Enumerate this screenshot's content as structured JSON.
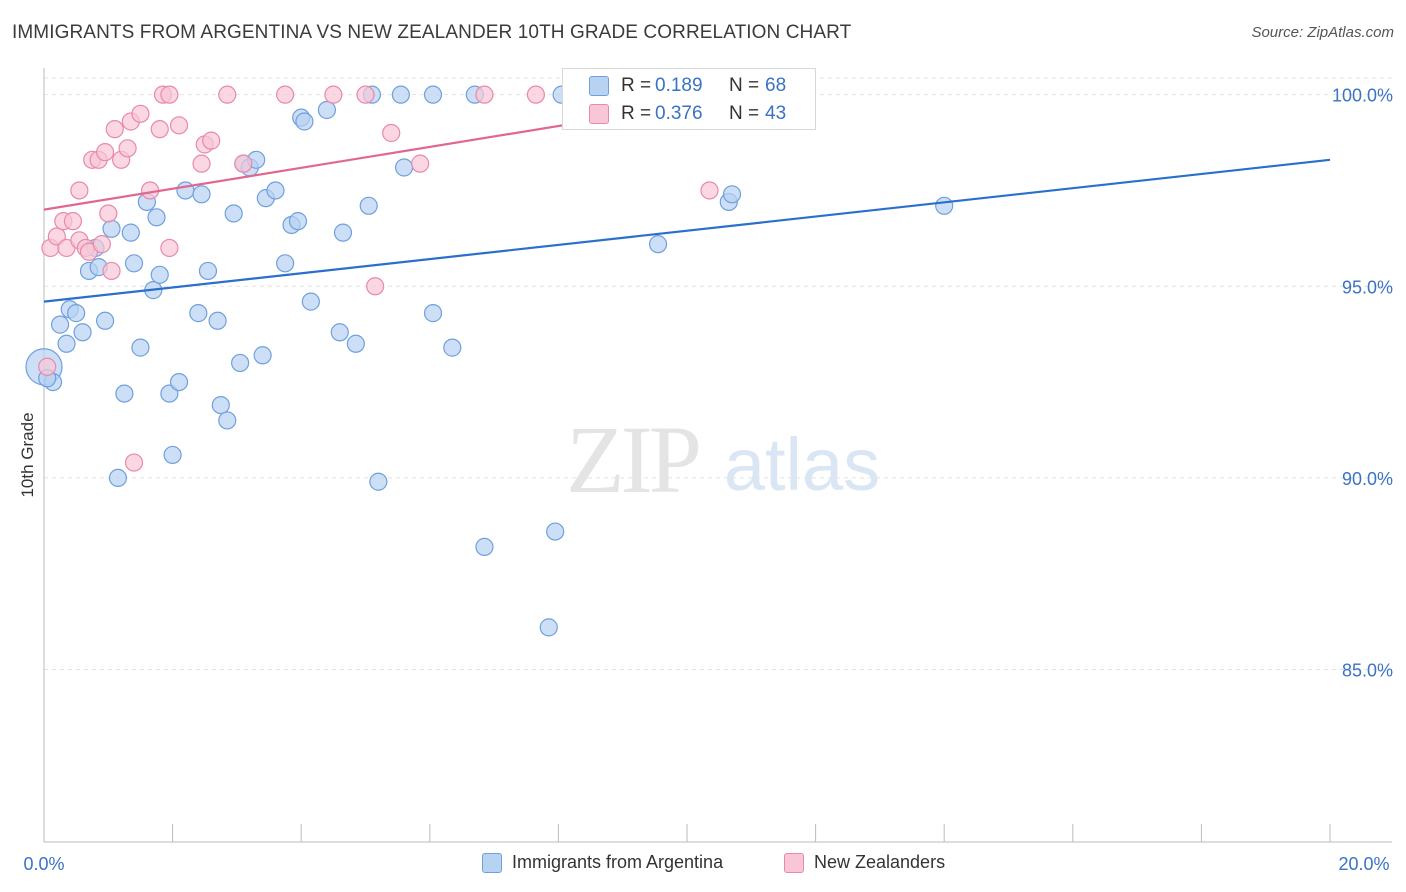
{
  "title": "IMMIGRANTS FROM ARGENTINA VS NEW ZEALANDER 10TH GRADE CORRELATION CHART",
  "source": "Source: ZipAtlas.com",
  "watermark": {
    "zip": "ZIP",
    "atlas": "atlas"
  },
  "colors": {
    "blue_fill": "#b8d2f2",
    "blue_stroke": "#6fa0dc",
    "blue_line": "#2a6fcc",
    "pink_fill": "#f8c6d6",
    "pink_stroke": "#e88aa8",
    "pink_line": "#e06890",
    "tick_label": "#3a72c4",
    "grid": "#e2e2e2"
  },
  "stats_box": {
    "rows": [
      {
        "r_label": "R =",
        "r_value": "0.189",
        "n_label": "N =",
        "n_value": "68",
        "color": "#b8d2f2",
        "stroke": "#6fa0dc"
      },
      {
        "r_label": "R =",
        "r_value": "0.376",
        "n_label": "N =",
        "n_value": "43",
        "color": "#f8c6d6",
        "stroke": "#e88aa8"
      }
    ]
  },
  "legend": {
    "items": [
      {
        "label": "Immigrants from Argentina"
      },
      {
        "label": "New Zealanders"
      }
    ]
  },
  "chart_data": {
    "type": "scatter",
    "title": "IMMIGRANTS FROM ARGENTINA VS NEW ZEALANDER 10TH GRADE CORRELATION CHART",
    "xlabel": "",
    "ylabel": "10th Grade",
    "xlim": [
      0,
      20
    ],
    "ylim": [
      80.5,
      100.8
    ],
    "x_tick_labels": [
      "0.0%",
      "20.0%"
    ],
    "y_ticks": [
      85,
      90,
      95,
      100
    ],
    "y_tick_labels": [
      "85.0%",
      "90.0%",
      "95.0%",
      "100.0%"
    ],
    "grid": "horizontal dashed",
    "legend_position": "bottom-center",
    "series": [
      {
        "name": "Immigrants from Argentina",
        "trend": {
          "x": [
            0,
            20
          ],
          "y": [
            94.6,
            98.3
          ]
        },
        "points": [
          [
            0.0,
            92.9
          ],
          [
            0.14,
            92.5
          ],
          [
            0.25,
            94.0
          ],
          [
            0.35,
            93.5
          ],
          [
            0.4,
            94.4
          ],
          [
            0.5,
            94.3
          ],
          [
            0.6,
            93.8
          ],
          [
            0.7,
            95.4
          ],
          [
            0.8,
            96.0
          ],
          [
            0.85,
            95.5
          ],
          [
            0.95,
            94.1
          ],
          [
            1.05,
            96.5
          ],
          [
            1.15,
            90.0
          ],
          [
            1.25,
            92.2
          ],
          [
            1.35,
            96.4
          ],
          [
            1.4,
            95.6
          ],
          [
            1.5,
            93.4
          ],
          [
            1.6,
            97.2
          ],
          [
            1.7,
            94.9
          ],
          [
            1.75,
            96.8
          ],
          [
            1.8,
            95.3
          ],
          [
            1.95,
            92.2
          ],
          [
            2.0,
            90.6
          ],
          [
            2.1,
            92.5
          ],
          [
            2.2,
            97.5
          ],
          [
            2.4,
            94.3
          ],
          [
            2.45,
            97.4
          ],
          [
            2.55,
            95.4
          ],
          [
            2.7,
            94.1
          ],
          [
            2.75,
            91.9
          ],
          [
            2.85,
            91.5
          ],
          [
            2.95,
            96.9
          ],
          [
            3.05,
            93.0
          ],
          [
            3.1,
            98.2
          ],
          [
            3.2,
            98.1
          ],
          [
            3.3,
            98.3
          ],
          [
            3.4,
            93.2
          ],
          [
            3.45,
            97.3
          ],
          [
            3.6,
            97.5
          ],
          [
            3.75,
            95.6
          ],
          [
            3.85,
            96.6
          ],
          [
            3.95,
            96.7
          ],
          [
            4.0,
            99.4
          ],
          [
            4.05,
            99.3
          ],
          [
            4.15,
            94.6
          ],
          [
            4.4,
            99.6
          ],
          [
            4.6,
            93.8
          ],
          [
            4.65,
            96.4
          ],
          [
            4.85,
            93.5
          ],
          [
            5.05,
            97.1
          ],
          [
            5.1,
            100.0
          ],
          [
            5.2,
            89.9
          ],
          [
            5.55,
            100.0
          ],
          [
            5.6,
            98.1
          ],
          [
            6.05,
            100.0
          ],
          [
            6.05,
            94.3
          ],
          [
            6.35,
            93.4
          ],
          [
            6.7,
            100.0
          ],
          [
            6.85,
            88.2
          ],
          [
            7.85,
            86.1
          ],
          [
            7.95,
            88.6
          ],
          [
            8.05,
            100.0
          ],
          [
            8.65,
            100.0
          ],
          [
            9.55,
            96.1
          ],
          [
            10.65,
            97.2
          ],
          [
            10.7,
            97.4
          ],
          [
            14.0,
            97.1
          ],
          [
            0.05,
            92.6
          ]
        ]
      },
      {
        "name": "New Zealanders",
        "trend": {
          "x": [
            0,
            11.0
          ],
          "y": [
            97.0,
            100.0
          ]
        },
        "points": [
          [
            0.05,
            92.9
          ],
          [
            0.1,
            96.0
          ],
          [
            0.2,
            96.3
          ],
          [
            0.3,
            96.7
          ],
          [
            0.35,
            96.0
          ],
          [
            0.45,
            96.7
          ],
          [
            0.55,
            96.2
          ],
          [
            0.55,
            97.5
          ],
          [
            0.65,
            96.0
          ],
          [
            0.7,
            95.9
          ],
          [
            0.75,
            98.3
          ],
          [
            0.85,
            98.3
          ],
          [
            0.9,
            96.1
          ],
          [
            0.95,
            98.5
          ],
          [
            1.0,
            96.9
          ],
          [
            1.05,
            95.4
          ],
          [
            1.1,
            99.1
          ],
          [
            1.2,
            98.3
          ],
          [
            1.3,
            98.6
          ],
          [
            1.35,
            99.3
          ],
          [
            1.4,
            90.4
          ],
          [
            1.5,
            99.5
          ],
          [
            1.65,
            97.5
          ],
          [
            1.8,
            99.1
          ],
          [
            1.85,
            100.0
          ],
          [
            1.95,
            96.0
          ],
          [
            1.95,
            100.0
          ],
          [
            2.1,
            99.2
          ],
          [
            2.45,
            98.2
          ],
          [
            2.5,
            98.7
          ],
          [
            2.6,
            98.8
          ],
          [
            2.85,
            100.0
          ],
          [
            3.1,
            98.2
          ],
          [
            3.75,
            100.0
          ],
          [
            4.5,
            100.0
          ],
          [
            5.0,
            100.0
          ],
          [
            5.15,
            95.0
          ],
          [
            5.4,
            99.0
          ],
          [
            5.85,
            98.2
          ],
          [
            6.85,
            100.0
          ],
          [
            7.65,
            100.0
          ],
          [
            10.35,
            97.5
          ],
          [
            10.45,
            100.0
          ]
        ]
      }
    ]
  }
}
